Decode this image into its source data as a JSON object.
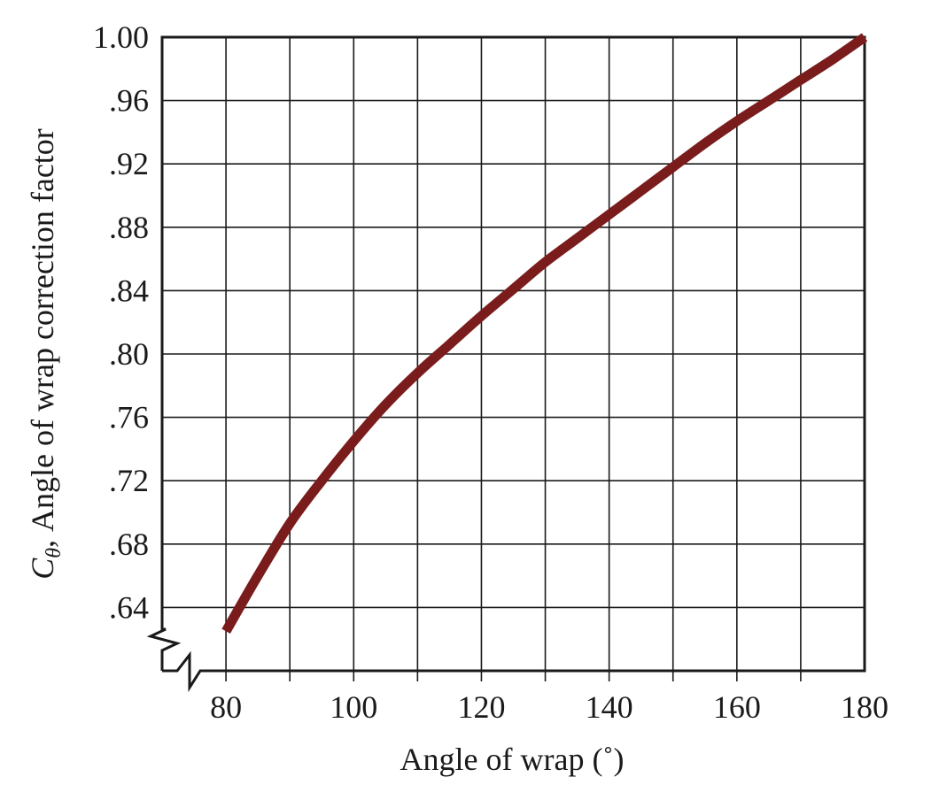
{
  "chart_data": {
    "type": "line",
    "xlabel": "Angle of wrap (˚)",
    "ylabel_symbol": "C",
    "ylabel_subscript": "θ",
    "ylabel_rest": ", Angle of wrap correction factor",
    "x_ticks": [
      "80",
      "100",
      "120",
      "140",
      "160",
      "180"
    ],
    "y_ticks": [
      "1.00",
      ".96",
      ".92",
      ".88",
      ".84",
      ".80",
      ".76",
      ".72",
      ".68",
      ".64"
    ],
    "xlim": [
      70,
      180
    ],
    "ylim": [
      0.6,
      1.0
    ],
    "grid": true,
    "axis_break": "both",
    "series": [
      {
        "color": "#7a1c1c",
        "x": [
          80,
          85,
          90,
          95,
          100,
          105,
          110,
          115,
          120,
          125,
          130,
          135,
          140,
          145,
          150,
          155,
          160,
          165,
          170,
          175,
          180
        ],
        "y": [
          0.625,
          0.66,
          0.693,
          0.72,
          0.745,
          0.768,
          0.788,
          0.806,
          0.824,
          0.841,
          0.858,
          0.873,
          0.888,
          0.903,
          0.918,
          0.933,
          0.947,
          0.96,
          0.973,
          0.986,
          1.0
        ]
      }
    ]
  }
}
